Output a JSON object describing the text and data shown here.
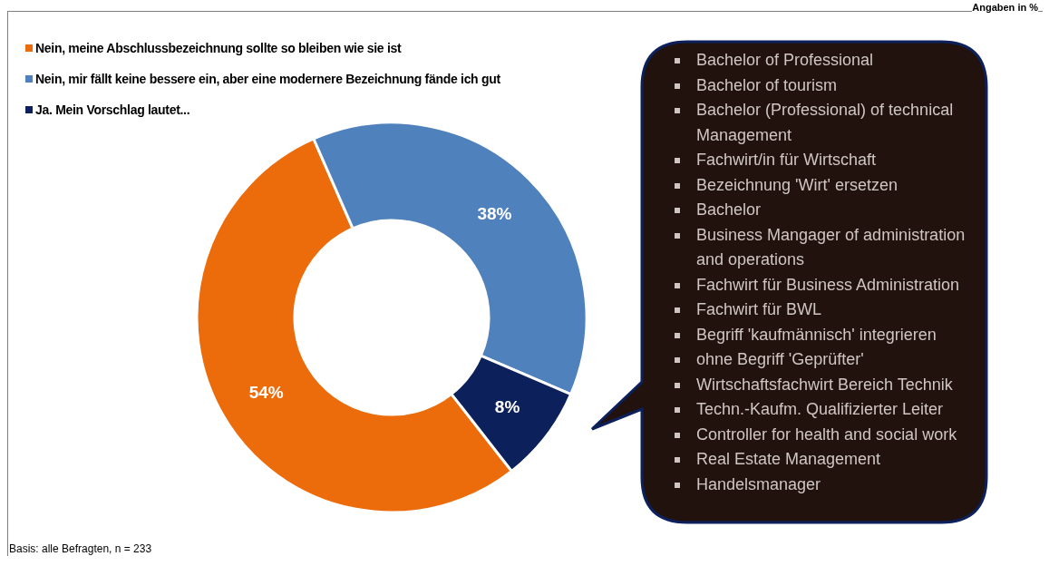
{
  "chart_data": {
    "type": "donut",
    "categories": [
      "Nein, meine Abschlussbezeichnung sollte so bleiben wie sie ist",
      "Nein, mir fällt keine bessere ein, aber eine modernere Bezeichnung fände ich gut",
      "Ja. Mein Vorschlag lautet..."
    ],
    "values": [
      54,
      38,
      8
    ],
    "colors": [
      "#ec6c0c",
      "#4f81bd",
      "#0c215c"
    ],
    "value_labels": [
      "54%",
      "38%",
      "8%"
    ],
    "legend": "top left",
    "annotations": [
      "Angaben in %",
      "Basis: alle Befragten, n = 233",
      "Bachelor of Professional",
      "Bachelor of tourism",
      "Bachelor (Professional) of technical Management",
      "Fachwirt/in für Wirtschaft",
      "Bezeichnung 'Wirt' ersetzen",
      "Bachelor",
      "Business Mangager of administration and operations",
      "Fachwirt für Business Administration",
      "Fachwirt für BWL",
      "Begriff 'kaufmännisch' integrieren",
      "ohne Begriff 'Geprüfter'",
      "Wirtschaftsfachwirt Bereich Technik",
      "Techn.-Kaufm. Qualifizierter Leiter",
      "Controller for health and social work",
      "Real Estate Management",
      "Handelsmanager"
    ]
  }
}
